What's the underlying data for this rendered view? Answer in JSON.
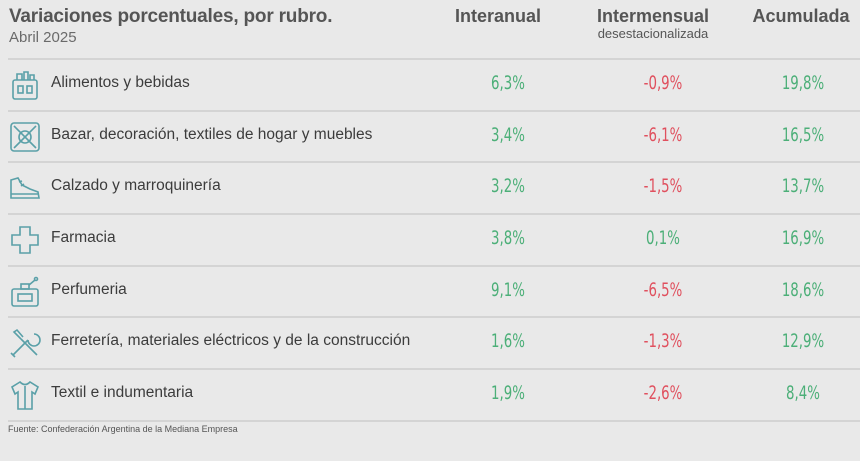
{
  "title": "Variaciones porcentuales, por rubro.",
  "subtitle": "Abril 2025",
  "columns": {
    "interanual": "Interanual",
    "intermensual": "Intermensual",
    "intermensual_sub": "desestacionalizada",
    "acumulada": "Acumulada"
  },
  "source": "Fuente: Confederación Argentina de la Mediana Empresa",
  "colors": {
    "positive": "#4caf78",
    "negative": "#e0505e",
    "text": "#3c3c3c"
  },
  "chart_data": {
    "type": "table",
    "title": "Variaciones porcentuales, por rubro.",
    "subtitle": "Abril 2025",
    "columns": [
      "Interanual",
      "Intermensual desestacionalizada",
      "Acumulada"
    ],
    "rows": [
      {
        "icon": "grocery-bag-icon",
        "rubro": "Alimentos y bebidas",
        "interanual": "6,3%",
        "intermensual": "-0,9%",
        "acumulada": "19,8%"
      },
      {
        "icon": "home-goods-icon",
        "rubro": "Bazar, decoración, textiles de hogar y muebles",
        "interanual": "3,4%",
        "intermensual": "-6,1%",
        "acumulada": "16,5%"
      },
      {
        "icon": "shoe-icon",
        "rubro": "Calzado y marroquinería",
        "interanual": "3,2%",
        "intermensual": "-1,5%",
        "acumulada": "13,7%"
      },
      {
        "icon": "pharmacy-cross-icon",
        "rubro": "Farmacia",
        "interanual": "3,8%",
        "intermensual": "0,1%",
        "acumulada": "16,9%"
      },
      {
        "icon": "perfume-icon",
        "rubro": "Perfumeria",
        "interanual": "9,1%",
        "intermensual": "-6,5%",
        "acumulada": "18,6%"
      },
      {
        "icon": "tools-icon",
        "rubro": "Ferretería, materiales eléctricos y de la construcción",
        "interanual": "1,6%",
        "intermensual": "-1,3%",
        "acumulada": "12,9%"
      },
      {
        "icon": "shirt-icon",
        "rubro": "Textil e indumentaria",
        "interanual": "1,9%",
        "intermensual": "-2,6%",
        "acumulada": "8,4%"
      }
    ]
  }
}
